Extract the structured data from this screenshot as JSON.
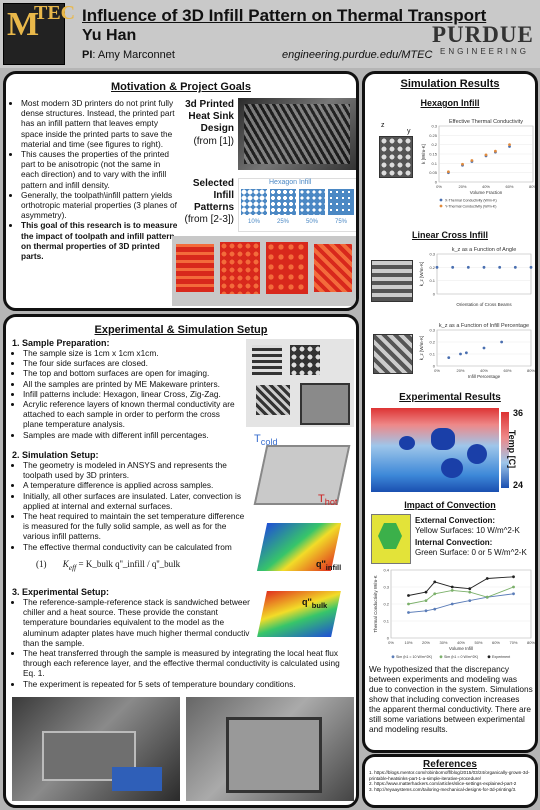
{
  "header": {
    "logo_big": "M",
    "logo_small": "TEC",
    "title": "Influence of 3D Infill Pattern on Thermal Transport",
    "author": "Yu Han",
    "pi_label": "PI",
    "pi_name": ": Amy Marconnet",
    "url": "engineering.purdue.edu/MTEC",
    "purdue": "PURDUE",
    "purdue_sub": "ENGINEERING"
  },
  "motivation": {
    "title": "Motivation & Project Goals",
    "bullets": [
      "Most modern 3D printers do not print fully dense structures. Instead, the printed part has an infill pattern that leaves empty space inside the printed parts to save the material and time (see figures to right).",
      "This causes the properties of the printed part to be anisotropic (not the same in each direction) and to vary with the infill pattern and infill density.",
      "Generally, the toolpath\\infill pattern yields orthotropic material properties (3 planes of asymmetry)."
    ],
    "bold_bullet": "This goal of this research is to measure the impact of toolpath and infill pattern on thermal properties of 3D printed parts.",
    "heatsink_label": "3d Printed Heat Sink Design",
    "heatsink_ref": "(from [1])",
    "infill_label": "Selected Infill Patterns",
    "infill_ref": "(from [2-3])",
    "infill_img_title": "Hexagon Infill",
    "percents": [
      "10%",
      "25%",
      "50%",
      "75%"
    ]
  },
  "setup": {
    "title": "Experimental & Simulation Setup",
    "s1_head": "1. Sample Preparation:",
    "s1_items": [
      "The sample size is 1cm x 1cm x1cm.",
      "The four side surfaces are closed.",
      "The top and bottom surfaces are open for imaging.",
      "All the samples are printed by ME Makeware printers.",
      "Infill patterns include: Hexagon, linear Cross, Zig-Zag.",
      "Acrylic reference layers of known thermal conductivity are attached to each sample in order to perform the cross plane temperature analysis.",
      "Samples are made with different infill percentages."
    ],
    "s2_head": "2. Simulation Setup:",
    "s2_items": [
      "The geometry is modeled in ANSYS and represents the toolpath used by 3D printers.",
      "A temperature difference is applied across samples.",
      "Initially, all other surfaces are insulated. Later, convection is applied at internal and external surfaces.",
      "The heat required to maintain the set temperature difference is measured for the fully solid sample, as well as for the various infill patterns.",
      "The effective thermal conductivity can be calculated from"
    ],
    "eq_num": "(1)",
    "eq_lhs": "K",
    "eq_sub": "eff",
    "eq_rhs": "= K_bulk q''_infill / q''_bulk",
    "s3_head": "3. Experimental Setup:",
    "s3_items": [
      "The reference-sample-reference stack is sandwiched between a chiller and a heat source. These provide the constant temperature boundaries equivalent to the model as the aluminum adapter plates have much higher thermal conductivity than the sample.",
      "The heat transferred through the sample is measured by integrating the local heat flux through each reference layer, and the effective thermal conductivity is calculated using Eq. 1.",
      "The experiment is repeated for 5 sets of temperature boundary conditions."
    ],
    "t_cold": "T",
    "t_cold_sub": "cold",
    "t_hot": "T",
    "t_hot_sub": "hot",
    "q_infill": "q''",
    "q_infill_sub": "infill",
    "q_bulk": "q''",
    "q_bulk_sub": "bulk"
  },
  "simres": {
    "title": "Simulation Results",
    "hex_title": "Hexagon Infill",
    "hex_chart_title": "Effective Thermal Conductivity",
    "lin_title": "Linear Cross Infill",
    "lin_chart1_title": "k_z as a Function of Angle",
    "lin_chart2_title": "k_z as a Function of Infill Percentage",
    "lin_xlabel1": "Orientation of Cross Beams",
    "lin_xlabel2": "Infill Percentage",
    "z_label": "z",
    "y_label": "y",
    "x_label": "x"
  },
  "expres": {
    "title": "Experimental Results",
    "temp_label": "Temp [C]",
    "t_max": "36",
    "t_min": "24"
  },
  "convection": {
    "title": "Impact of Convection",
    "ext_head": "External Convection:",
    "ext_val": "Yellow Surfaces: 10 W/m^2-K",
    "int_head": "Internal Convection:",
    "int_val": "Green Surface: 0 or 5 W/m^2-K",
    "paragraph": "We hypothesized that the discrepancy between experiments and modeling was due to convection in the system. Simulations show that including convection increases the apparent thermal conductivity. There are still some variations between experimental and modeling results."
  },
  "references": {
    "title": "References",
    "items": [
      "1. https://blogs.mentor.com/robinbornoff/blog/2015/03/24/organically-grown-3d-printable-heatsinks-part-1-a-simple-iterative-procedure/",
      "2. https://www.matterhackers.com/articles/slice-settings-explained-part-2",
      "3. http://reyaaystems.com/tailoring-mechanical-designs-for-3d-printing/3."
    ]
  },
  "chart_data": [
    {
      "type": "scatter",
      "title": "Effective Thermal Conductivity",
      "xlabel": "Volume Fraction",
      "ylabel": "k [W/m-K]",
      "xlim": [
        0,
        1
      ],
      "ylim": [
        0,
        0.3
      ],
      "x_ticks": [
        "0%",
        "20%",
        "40%",
        "60%",
        "80%"
      ],
      "y_ticks": [
        "0",
        "0.05",
        "0.1",
        "0.15",
        "0.2",
        "0.25",
        "0.3"
      ],
      "legend": "bottom",
      "series": [
        {
          "name": "X-Thermal Conductivity (W/m-K)",
          "color": "#4a6fb0",
          "x": [
            0.1,
            0.25,
            0.35,
            0.5,
            0.6,
            0.75
          ],
          "y": [
            0.05,
            0.09,
            0.11,
            0.14,
            0.16,
            0.19
          ]
        },
        {
          "name": "Y-Thermal Conductivity (W/m-K)",
          "color": "#e08a3c",
          "x": [
            0.1,
            0.25,
            0.35,
            0.5,
            0.6,
            0.75
          ],
          "y": [
            0.055,
            0.095,
            0.115,
            0.145,
            0.165,
            0.2
          ]
        }
      ]
    },
    {
      "type": "scatter",
      "title": "k_z as a Function of Angle",
      "xlabel": "Orientation of Cross Beams",
      "ylabel": "k_z [W/m-K]",
      "ylim": [
        0,
        0.3
      ],
      "y_ticks": [
        "0",
        "0.1",
        "0.2",
        "0.3"
      ],
      "series": [
        {
          "name": "",
          "color": "#4a6fb0",
          "x": [
            0,
            15,
            30,
            45,
            60,
            75,
            90
          ],
          "y": [
            0.2,
            0.2,
            0.2,
            0.2,
            0.2,
            0.2,
            0.2
          ]
        }
      ]
    },
    {
      "type": "scatter",
      "title": "k_z as a Function of Infill Percentage",
      "xlabel": "Infill Percentage",
      "ylabel": "k_z [W/m-K]",
      "xlim": [
        0,
        80
      ],
      "ylim": [
        0,
        0.3
      ],
      "x_ticks": [
        "0%",
        "20%",
        "40%",
        "60%",
        "80%"
      ],
      "y_ticks": [
        "0",
        "0.1",
        "0.2",
        "0.3"
      ],
      "series": [
        {
          "name": "",
          "color": "#4a6fb0",
          "x": [
            10,
            20,
            25,
            40,
            55
          ],
          "y": [
            0.07,
            0.1,
            0.11,
            0.15,
            0.2
          ]
        }
      ]
    },
    {
      "type": "line",
      "title": "",
      "xlabel": "Volume Infill",
      "ylabel": "Thermal Conductivity W/m-K",
      "xlim": [
        0,
        0.8
      ],
      "ylim": [
        0,
        0.4
      ],
      "x_ticks": [
        "0%",
        "10%",
        "20%",
        "30%",
        "40%",
        "50%",
        "60%",
        "70%",
        "80%"
      ],
      "y_ticks": [
        "0",
        "0.1",
        "0.2",
        "0.3",
        "0.4"
      ],
      "legend": "bottom",
      "series": [
        {
          "name": "Sim (h1 = 10 W/m^2K)",
          "color": "#5b7db8",
          "x": [
            0.1,
            0.2,
            0.25,
            0.35,
            0.45,
            0.55,
            0.7
          ],
          "y": [
            0.15,
            0.16,
            0.17,
            0.2,
            0.22,
            0.24,
            0.26
          ]
        },
        {
          "name": "Sim (h1 = 0 W/m^2K)",
          "color": "#7bb06a",
          "x": [
            0.1,
            0.2,
            0.25,
            0.35,
            0.45,
            0.55,
            0.7
          ],
          "y": [
            0.2,
            0.22,
            0.26,
            0.28,
            0.27,
            0.24,
            0.3
          ]
        },
        {
          "name": "Experiment",
          "color": "#222222",
          "x": [
            0.1,
            0.2,
            0.25,
            0.35,
            0.45,
            0.55,
            0.7
          ],
          "y": [
            0.25,
            0.27,
            0.33,
            0.3,
            0.29,
            0.35,
            0.36
          ]
        }
      ]
    }
  ]
}
